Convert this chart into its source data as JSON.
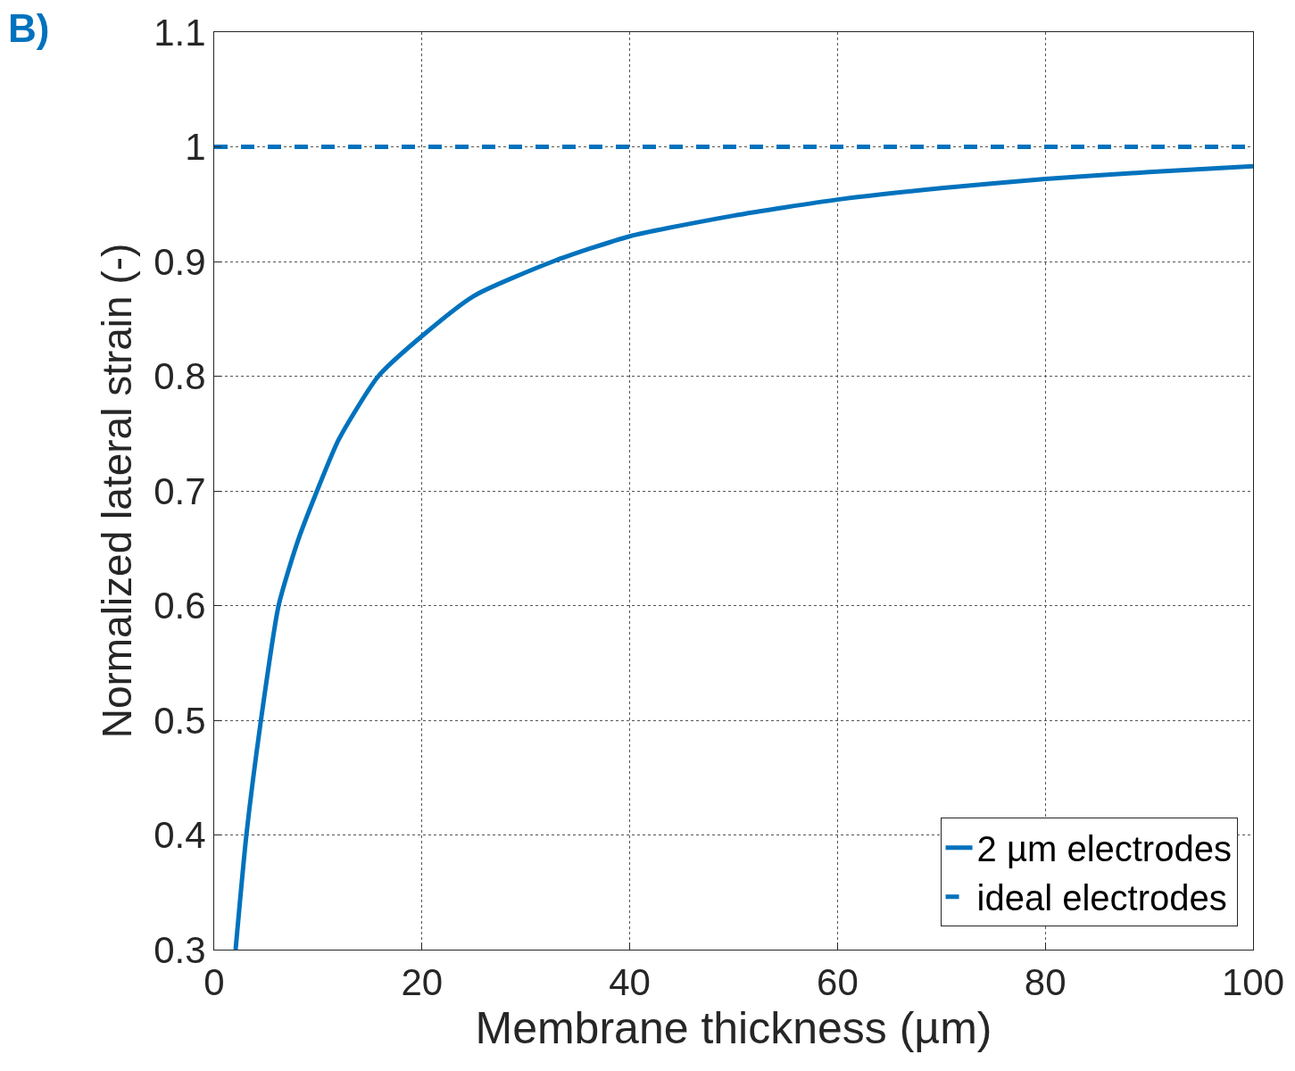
{
  "chart_data": {
    "type": "line",
    "xlabel": "Membrane thickness (µm)",
    "ylabel": "Normalized lateral strain (-)",
    "annotations": [
      "B)"
    ],
    "xlim": [
      0,
      100
    ],
    "xticks": [
      0,
      20,
      40,
      60,
      80,
      100
    ],
    "ylim": [
      0.3,
      1.1
    ],
    "yticks": [
      0.3,
      0.4,
      0.5,
      0.6,
      0.7,
      0.8,
      0.9,
      1,
      1.1
    ],
    "grid": true,
    "legend": "bottom right",
    "series": [
      {
        "name": "2 µm electrodes",
        "color": "#0072bd",
        "line_style": "solid",
        "x": [
          2.06,
          3.1,
          4.5,
          6.2,
          8,
          9.9,
          12,
          15.8,
          20,
          25,
          32.6,
          40,
          50,
          60,
          70,
          80,
          90,
          100
        ],
        "values": [
          0.3,
          0.4,
          0.5,
          0.6,
          0.655,
          0.7,
          0.745,
          0.8,
          0.835,
          0.87,
          0.9,
          0.922,
          0.94,
          0.954,
          0.964,
          0.972,
          0.978,
          0.983
        ]
      },
      {
        "name": "ideal electrodes",
        "color": "#0072bd",
        "line_style": "dashed",
        "x": [
          0,
          100
        ],
        "values": [
          1,
          1
        ]
      }
    ]
  }
}
